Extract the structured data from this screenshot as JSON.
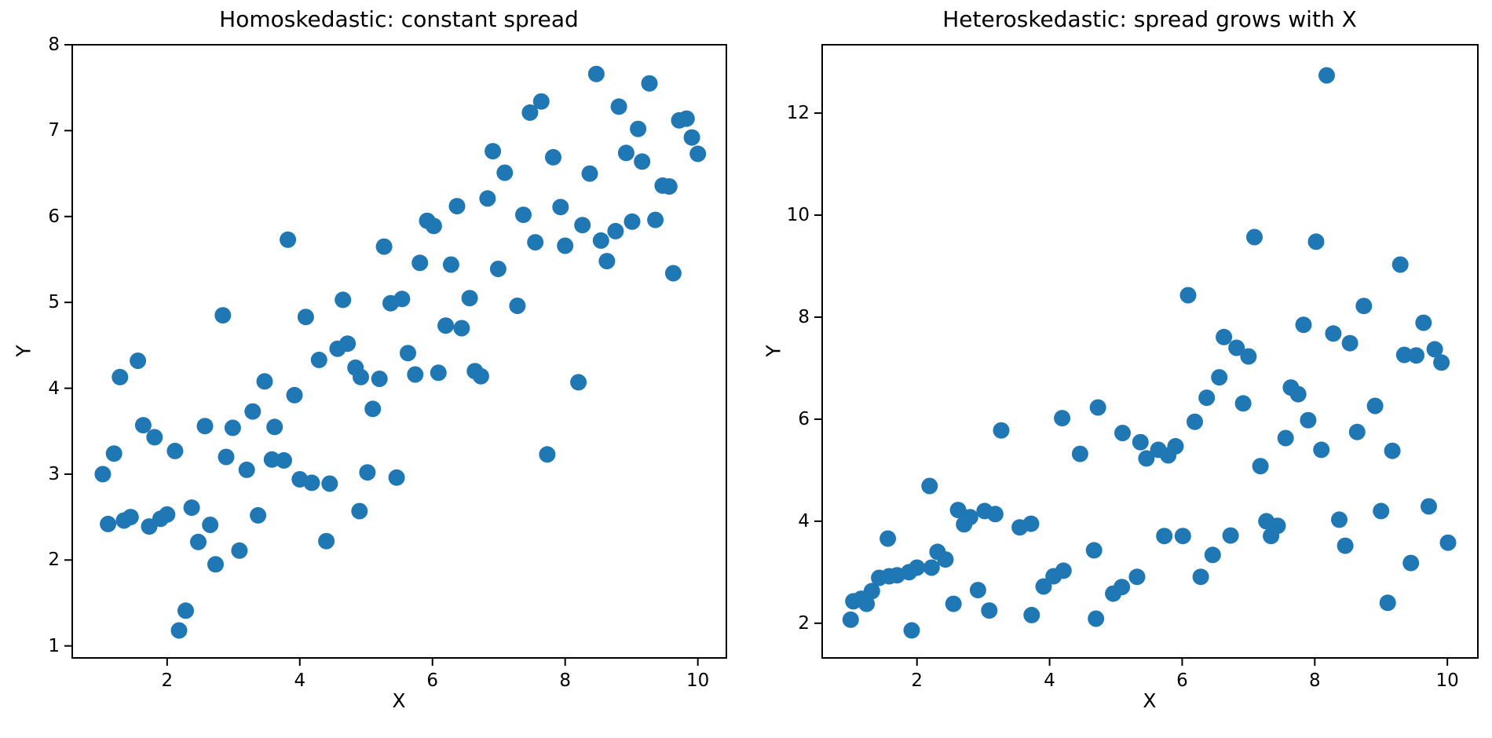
{
  "figure": {
    "background": "#ffffff",
    "dot_color": "#1f77b4",
    "spine_color": "#000000",
    "text_color": "#000000"
  },
  "chart_data": [
    {
      "type": "scatter",
      "title": "Homoskedastic: constant spread",
      "xlabel": "X",
      "ylabel": "Y",
      "xlim": [
        0.57,
        10.43
      ],
      "ylim": [
        0.86,
        8.0
      ],
      "xticks": [
        2,
        4,
        6,
        8,
        10
      ],
      "yticks": [
        1,
        2,
        3,
        4,
        5,
        6,
        7,
        8
      ],
      "grid": false,
      "legend": null,
      "marker_radius": 10.5,
      "points": [
        [
          1.03,
          3.0
        ],
        [
          1.11,
          2.42
        ],
        [
          1.2,
          3.24
        ],
        [
          1.29,
          4.13
        ],
        [
          1.35,
          2.46
        ],
        [
          1.45,
          2.5
        ],
        [
          1.56,
          4.32
        ],
        [
          1.64,
          3.57
        ],
        [
          1.73,
          2.39
        ],
        [
          1.81,
          3.43
        ],
        [
          1.9,
          2.48
        ],
        [
          2.0,
          2.53
        ],
        [
          2.12,
          3.27
        ],
        [
          2.18,
          1.18
        ],
        [
          2.28,
          1.41
        ],
        [
          2.37,
          2.61
        ],
        [
          2.47,
          2.21
        ],
        [
          2.57,
          3.56
        ],
        [
          2.65,
          2.41
        ],
        [
          2.73,
          1.95
        ],
        [
          2.84,
          4.85
        ],
        [
          2.89,
          3.2
        ],
        [
          2.99,
          3.54
        ],
        [
          3.09,
          2.11
        ],
        [
          3.2,
          3.05
        ],
        [
          3.29,
          3.73
        ],
        [
          3.37,
          2.52
        ],
        [
          3.47,
          4.08
        ],
        [
          3.58,
          3.17
        ],
        [
          3.76,
          3.16
        ],
        [
          3.62,
          3.55
        ],
        [
          3.82,
          5.73
        ],
        [
          3.92,
          3.92
        ],
        [
          4.0,
          2.94
        ],
        [
          4.09,
          4.83
        ],
        [
          4.18,
          2.9
        ],
        [
          4.29,
          4.33
        ],
        [
          4.4,
          2.22
        ],
        [
          4.45,
          2.89
        ],
        [
          4.57,
          4.46
        ],
        [
          4.72,
          4.52
        ],
        [
          4.65,
          5.03
        ],
        [
          4.84,
          4.24
        ],
        [
          4.9,
          2.57
        ],
        [
          4.92,
          4.13
        ],
        [
          5.02,
          3.02
        ],
        [
          5.1,
          3.76
        ],
        [
          5.2,
          4.11
        ],
        [
          5.27,
          5.65
        ],
        [
          5.37,
          4.99
        ],
        [
          5.46,
          2.96
        ],
        [
          5.54,
          5.04
        ],
        [
          5.63,
          4.41
        ],
        [
          5.74,
          4.16
        ],
        [
          5.81,
          5.46
        ],
        [
          5.92,
          5.95
        ],
        [
          6.02,
          5.89
        ],
        [
          6.09,
          4.18
        ],
        [
          6.2,
          4.73
        ],
        [
          6.28,
          5.44
        ],
        [
          6.37,
          6.12
        ],
        [
          6.44,
          4.7
        ],
        [
          6.56,
          5.05
        ],
        [
          6.64,
          4.2
        ],
        [
          6.73,
          4.14
        ],
        [
          6.83,
          6.21
        ],
        [
          6.91,
          6.76
        ],
        [
          6.99,
          5.39
        ],
        [
          7.09,
          6.51
        ],
        [
          7.28,
          4.96
        ],
        [
          7.37,
          6.02
        ],
        [
          7.47,
          7.21
        ],
        [
          7.55,
          5.7
        ],
        [
          7.64,
          7.34
        ],
        [
          7.73,
          3.23
        ],
        [
          7.82,
          6.69
        ],
        [
          7.93,
          6.11
        ],
        [
          8.0,
          5.66
        ],
        [
          8.2,
          4.07
        ],
        [
          8.26,
          5.9
        ],
        [
          8.37,
          6.5
        ],
        [
          8.47,
          7.66
        ],
        [
          8.54,
          5.72
        ],
        [
          8.63,
          5.48
        ],
        [
          8.76,
          5.83
        ],
        [
          8.81,
          7.28
        ],
        [
          8.92,
          6.74
        ],
        [
          9.01,
          5.94
        ],
        [
          9.1,
          7.02
        ],
        [
          9.16,
          6.64
        ],
        [
          9.27,
          7.55
        ],
        [
          9.36,
          5.96
        ],
        [
          9.47,
          6.36
        ],
        [
          9.57,
          6.35
        ],
        [
          9.63,
          5.34
        ],
        [
          9.72,
          7.12
        ],
        [
          9.83,
          7.14
        ],
        [
          9.91,
          6.92
        ],
        [
          10.0,
          6.73
        ]
      ]
    },
    {
      "type": "scatter",
      "title": "Heteroskedastic: spread grows with X",
      "xlabel": "X",
      "ylabel": "Y",
      "xlim": [
        0.57,
        10.46
      ],
      "ylim": [
        1.32,
        13.34
      ],
      "xticks": [
        2,
        4,
        6,
        8,
        10
      ],
      "yticks": [
        2,
        4,
        6,
        8,
        10,
        12
      ],
      "grid": false,
      "legend": null,
      "marker_radius": 10.5,
      "points": [
        [
          1.0,
          2.07
        ],
        [
          1.04,
          2.43
        ],
        [
          1.16,
          2.48
        ],
        [
          1.24,
          2.38
        ],
        [
          1.32,
          2.63
        ],
        [
          1.43,
          2.89
        ],
        [
          1.56,
          3.66
        ],
        [
          1.58,
          2.92
        ],
        [
          1.7,
          2.94
        ],
        [
          1.88,
          3.0
        ],
        [
          1.92,
          1.86
        ],
        [
          2.0,
          3.09
        ],
        [
          2.19,
          4.69
        ],
        [
          2.22,
          3.09
        ],
        [
          2.31,
          3.4
        ],
        [
          2.43,
          3.25
        ],
        [
          2.55,
          2.38
        ],
        [
          2.62,
          4.22
        ],
        [
          2.71,
          3.94
        ],
        [
          2.8,
          4.08
        ],
        [
          2.92,
          2.65
        ],
        [
          3.02,
          4.2
        ],
        [
          3.09,
          2.25
        ],
        [
          3.18,
          4.14
        ],
        [
          3.27,
          5.78
        ],
        [
          3.55,
          3.88
        ],
        [
          3.72,
          3.95
        ],
        [
          3.73,
          2.16
        ],
        [
          3.91,
          2.72
        ],
        [
          4.06,
          2.92
        ],
        [
          4.19,
          6.02
        ],
        [
          4.21,
          3.03
        ],
        [
          4.46,
          5.32
        ],
        [
          4.67,
          3.43
        ],
        [
          4.7,
          2.09
        ],
        [
          4.73,
          6.23
        ],
        [
          4.96,
          2.58
        ],
        [
          5.09,
          2.71
        ],
        [
          5.1,
          5.73
        ],
        [
          5.32,
          2.91
        ],
        [
          5.37,
          5.55
        ],
        [
          5.46,
          5.23
        ],
        [
          5.64,
          5.4
        ],
        [
          5.79,
          5.29
        ],
        [
          5.9,
          5.47
        ],
        [
          5.73,
          3.71
        ],
        [
          6.01,
          3.71
        ],
        [
          6.09,
          8.43
        ],
        [
          6.19,
          5.95
        ],
        [
          6.28,
          2.91
        ],
        [
          6.37,
          6.42
        ],
        [
          6.46,
          3.34
        ],
        [
          6.56,
          6.82
        ],
        [
          6.63,
          7.61
        ],
        [
          6.73,
          3.72
        ],
        [
          6.82,
          7.4
        ],
        [
          6.92,
          6.31
        ],
        [
          7.0,
          7.23
        ],
        [
          7.09,
          9.57
        ],
        [
          7.18,
          5.08
        ],
        [
          7.27,
          4.0
        ],
        [
          7.34,
          3.71
        ],
        [
          7.44,
          3.91
        ],
        [
          7.56,
          5.63
        ],
        [
          7.64,
          6.62
        ],
        [
          7.75,
          6.49
        ],
        [
          7.83,
          7.85
        ],
        [
          7.9,
          5.98
        ],
        [
          8.02,
          9.48
        ],
        [
          8.1,
          5.4
        ],
        [
          8.18,
          12.74
        ],
        [
          8.28,
          7.68
        ],
        [
          8.37,
          4.03
        ],
        [
          8.46,
          3.52
        ],
        [
          8.53,
          7.49
        ],
        [
          8.64,
          5.75
        ],
        [
          8.74,
          8.22
        ],
        [
          8.91,
          6.26
        ],
        [
          9.0,
          4.2
        ],
        [
          9.1,
          2.4
        ],
        [
          9.17,
          5.38
        ],
        [
          9.29,
          9.03
        ],
        [
          9.35,
          7.26
        ],
        [
          9.45,
          3.18
        ],
        [
          9.53,
          7.25
        ],
        [
          9.64,
          7.89
        ],
        [
          9.72,
          4.29
        ],
        [
          9.81,
          7.37
        ],
        [
          9.91,
          7.11
        ],
        [
          10.01,
          3.58
        ]
      ]
    }
  ]
}
